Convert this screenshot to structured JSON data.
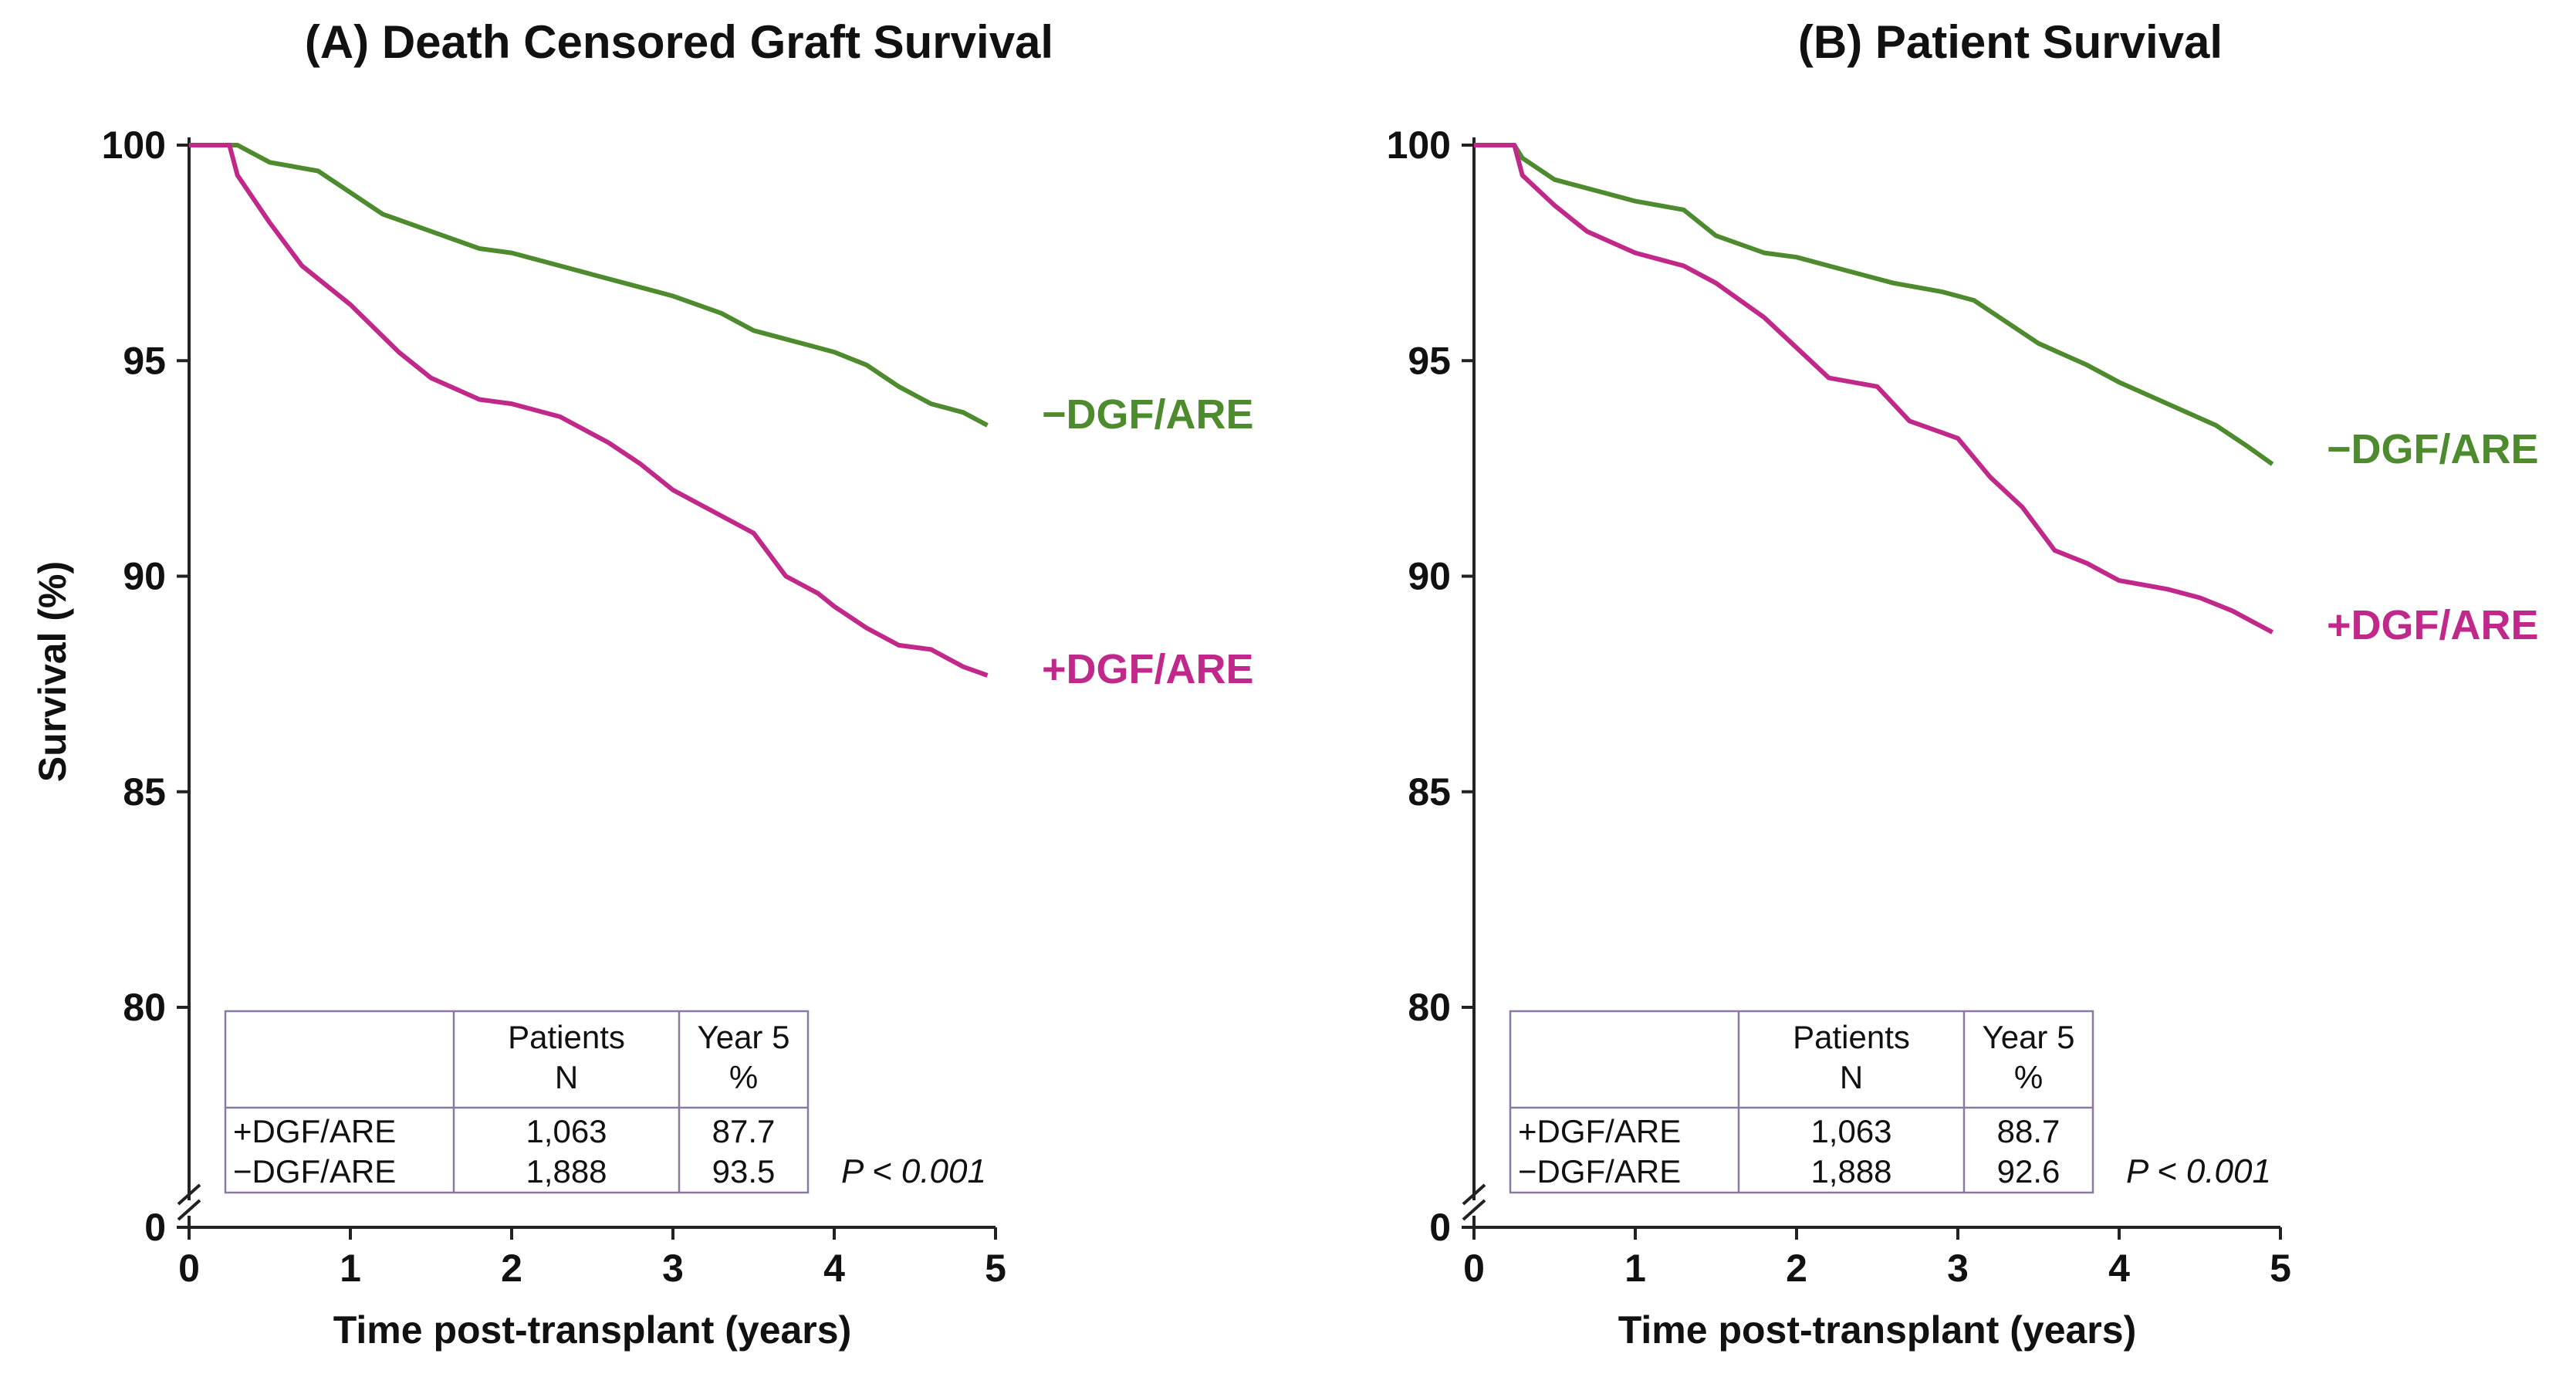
{
  "chart_data": [
    {
      "type": "line",
      "title": "(A) Death Censored Graft Survival",
      "xlabel": "Time post-transplant (years)",
      "ylabel": "Survival (%)",
      "xlim": [
        0,
        5
      ],
      "ylim": [
        75,
        100
      ],
      "y_axis_break": true,
      "x_ticks": [
        "0",
        "1",
        "2",
        "3",
        "4",
        "5"
      ],
      "y_ticks": [
        "0",
        "80",
        "85",
        "90",
        "95",
        "100"
      ],
      "grid": false,
      "legend": "inline labels at right end of curves",
      "series": [
        {
          "name": "−DGF/ARE",
          "color": "#4e8a2e",
          "x": [
            0,
            0.3,
            0.5,
            0.8,
            1.0,
            1.2,
            1.5,
            1.8,
            2.0,
            2.3,
            2.5,
            2.8,
            3.0,
            3.3,
            3.5,
            3.8,
            4.0,
            4.2,
            4.4,
            4.6,
            4.8,
            4.95
          ],
          "y": [
            100,
            100,
            99.6,
            99.4,
            98.9,
            98.4,
            98.0,
            97.6,
            97.5,
            97.2,
            97.0,
            96.7,
            96.5,
            96.1,
            95.7,
            95.4,
            95.2,
            94.9,
            94.4,
            94.0,
            93.8,
            93.5
          ]
        },
        {
          "name": "+DGF/ARE",
          "color": "#c0288a",
          "x": [
            0,
            0.25,
            0.3,
            0.5,
            0.7,
            1.0,
            1.3,
            1.5,
            1.8,
            2.0,
            2.3,
            2.6,
            2.8,
            3.0,
            3.2,
            3.5,
            3.7,
            3.9,
            4.0,
            4.2,
            4.4,
            4.6,
            4.8,
            4.95
          ],
          "y": [
            100,
            100,
            99.3,
            98.2,
            97.2,
            96.3,
            95.2,
            94.6,
            94.1,
            94.0,
            93.7,
            93.1,
            92.6,
            92.0,
            91.6,
            91.0,
            90.0,
            89.6,
            89.3,
            88.8,
            88.4,
            88.3,
            87.9,
            87.7
          ]
        }
      ],
      "table": {
        "headers": [
          "",
          "Patients\nN",
          "Year 5\n%"
        ],
        "header_line1": [
          "Patients",
          "Year 5"
        ],
        "header_line2": [
          "N",
          "%"
        ],
        "rows": [
          [
            "+DGF/ARE",
            "1,063",
            "87.7"
          ],
          [
            "−DGF/ARE",
            "1,888",
            "93.5"
          ]
        ]
      },
      "p_value": "P < 0.001"
    },
    {
      "type": "line",
      "title": "(B) Patient Survival",
      "xlabel": "Time post-transplant (years)",
      "ylabel": "",
      "xlim": [
        0,
        5
      ],
      "ylim": [
        75,
        100
      ],
      "y_axis_break": true,
      "x_ticks": [
        "0",
        "1",
        "2",
        "3",
        "4",
        "5"
      ],
      "y_ticks": [
        "0",
        "80",
        "85",
        "90",
        "95",
        "100"
      ],
      "grid": false,
      "legend": "inline labels at right end of curves",
      "series": [
        {
          "name": "−DGF/ARE",
          "color": "#4e8a2e",
          "x": [
            0,
            0.25,
            0.3,
            0.5,
            0.8,
            1.0,
            1.3,
            1.5,
            1.8,
            2.0,
            2.3,
            2.6,
            2.9,
            3.1,
            3.3,
            3.5,
            3.8,
            4.0,
            4.3,
            4.6,
            4.8,
            4.95
          ],
          "y": [
            100,
            100,
            99.7,
            99.2,
            98.9,
            98.7,
            98.5,
            97.9,
            97.5,
            97.4,
            97.1,
            96.8,
            96.6,
            96.4,
            95.9,
            95.4,
            94.9,
            94.5,
            94.0,
            93.5,
            93.0,
            92.6
          ]
        },
        {
          "name": "+DGF/ARE",
          "color": "#c0288a",
          "x": [
            0,
            0.25,
            0.3,
            0.5,
            0.7,
            1.0,
            1.3,
            1.5,
            1.8,
            2.0,
            2.2,
            2.5,
            2.7,
            3.0,
            3.2,
            3.4,
            3.6,
            3.8,
            4.0,
            4.3,
            4.5,
            4.7,
            4.95
          ],
          "y": [
            100,
            100,
            99.3,
            98.6,
            98.0,
            97.5,
            97.2,
            96.8,
            96.0,
            95.3,
            94.6,
            94.4,
            93.6,
            93.2,
            92.3,
            91.6,
            90.6,
            90.3,
            89.9,
            89.7,
            89.5,
            89.2,
            88.7
          ]
        }
      ],
      "table": {
        "headers": [
          "",
          "Patients\nN",
          "Year 5\n%"
        ],
        "header_line1": [
          "Patients",
          "Year 5"
        ],
        "header_line2": [
          "N",
          "%"
        ],
        "rows": [
          [
            "+DGF/ARE",
            "1,063",
            "88.7"
          ],
          [
            "−DGF/ARE",
            "1,888",
            "92.6"
          ]
        ]
      },
      "p_value": "P < 0.001"
    }
  ]
}
